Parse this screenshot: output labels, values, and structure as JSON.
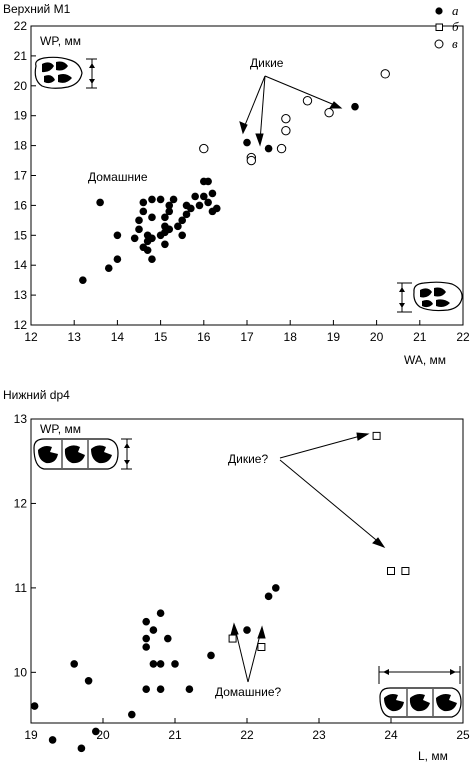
{
  "chart_data": [
    {
      "type": "scatter",
      "title": "Верхний M1",
      "xlabel": "WA, мм",
      "ylabel": "WP, мм",
      "xlim": [
        12,
        22
      ],
      "ylim": [
        12,
        22
      ],
      "xticks": [
        "12",
        "13",
        "14",
        "15",
        "16",
        "17",
        "18",
        "19",
        "20",
        "21",
        "22"
      ],
      "yticks": [
        "12",
        "13",
        "14",
        "15",
        "16",
        "17",
        "18",
        "19",
        "20",
        "21",
        "22"
      ],
      "legend": [
        {
          "marker": "filled-circle",
          "label": "а"
        },
        {
          "marker": "open-square",
          "label": "б"
        },
        {
          "marker": "open-circle",
          "label": "в"
        }
      ],
      "annotations": [
        "Дикие",
        "Домашние"
      ],
      "series": [
        {
          "legend_label": "а",
          "marker": "filled-circle",
          "points": [
            [
              13.2,
              13.5
            ],
            [
              13.6,
              16.1
            ],
            [
              13.8,
              13.9
            ],
            [
              14.0,
              14.2
            ],
            [
              14.0,
              15.0
            ],
            [
              14.4,
              14.9
            ],
            [
              14.5,
              15.2
            ],
            [
              14.5,
              15.5
            ],
            [
              14.6,
              16.1
            ],
            [
              14.6,
              15.8
            ],
            [
              14.6,
              14.6
            ],
            [
              14.7,
              15.0
            ],
            [
              14.7,
              14.5
            ],
            [
              14.7,
              14.8
            ],
            [
              14.8,
              15.6
            ],
            [
              14.8,
              14.9
            ],
            [
              14.8,
              14.2
            ],
            [
              14.8,
              16.2
            ],
            [
              15.0,
              16.2
            ],
            [
              15.0,
              15.0
            ],
            [
              15.1,
              15.6
            ],
            [
              15.1,
              15.3
            ],
            [
              15.1,
              15.1
            ],
            [
              15.1,
              14.7
            ],
            [
              15.2,
              16.0
            ],
            [
              15.2,
              15.8
            ],
            [
              15.2,
              15.2
            ],
            [
              15.3,
              16.2
            ],
            [
              15.4,
              15.3
            ],
            [
              15.5,
              15.5
            ],
            [
              15.5,
              15.0
            ],
            [
              15.6,
              16.0
            ],
            [
              15.6,
              15.7
            ],
            [
              15.7,
              15.9
            ],
            [
              15.8,
              16.3
            ],
            [
              15.9,
              16.0
            ],
            [
              16.0,
              16.8
            ],
            [
              16.0,
              16.3
            ],
            [
              16.1,
              16.8
            ],
            [
              16.1,
              16.1
            ],
            [
              16.2,
              16.4
            ],
            [
              16.2,
              15.8
            ],
            [
              16.3,
              15.9
            ],
            [
              17.0,
              18.1
            ],
            [
              17.5,
              17.9
            ],
            [
              19.5,
              19.3
            ]
          ]
        },
        {
          "legend_label": "в",
          "marker": "open-circle",
          "points": [
            [
              16.0,
              17.9
            ],
            [
              17.1,
              17.6
            ],
            [
              17.1,
              17.5
            ],
            [
              17.8,
              17.9
            ],
            [
              17.9,
              18.5
            ],
            [
              17.9,
              18.9
            ],
            [
              18.4,
              19.5
            ],
            [
              18.9,
              19.1
            ],
            [
              20.2,
              20.4
            ]
          ]
        }
      ]
    },
    {
      "type": "scatter",
      "title": "Нижний dp4",
      "xlabel": "L, мм",
      "ylabel": "WP, мм",
      "xlim": [
        19,
        25
      ],
      "ylim": [
        9.4,
        13
      ],
      "xticks": [
        "19",
        "20",
        "21",
        "22",
        "23",
        "24",
        "25"
      ],
      "yticks": [
        "10",
        "11",
        "12",
        "13"
      ],
      "annotations": [
        "Дикие?",
        "Домашние?"
      ],
      "series": [
        {
          "legend_label": "а",
          "marker": "filled-circle",
          "points": [
            [
              19.05,
              9.6
            ],
            [
              19.3,
              9.2
            ],
            [
              19.6,
              10.1
            ],
            [
              19.7,
              9.1
            ],
            [
              19.8,
              9.9
            ],
            [
              19.9,
              9.3
            ],
            [
              20.4,
              9.5
            ],
            [
              20.6,
              10.6
            ],
            [
              20.6,
              10.4
            ],
            [
              20.6,
              10.3
            ],
            [
              20.6,
              9.8
            ],
            [
              20.7,
              10.5
            ],
            [
              20.7,
              10.1
            ],
            [
              20.8,
              10.7
            ],
            [
              20.8,
              10.1
            ],
            [
              20.8,
              9.8
            ],
            [
              20.9,
              10.4
            ],
            [
              21.0,
              10.1
            ],
            [
              21.2,
              9.8
            ],
            [
              21.5,
              10.2
            ],
            [
              22.0,
              10.5
            ],
            [
              22.3,
              10.9
            ],
            [
              22.4,
              11.0
            ]
          ]
        },
        {
          "legend_label": "б",
          "marker": "open-square",
          "points": [
            [
              21.8,
              10.4
            ],
            [
              22.2,
              10.3
            ],
            [
              23.8,
              12.8
            ],
            [
              24.0,
              11.2
            ],
            [
              24.2,
              11.2
            ]
          ]
        }
      ]
    }
  ]
}
